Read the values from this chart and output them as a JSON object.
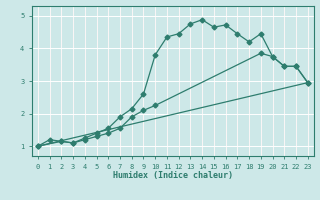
{
  "xlabel": "Humidex (Indice chaleur)",
  "bg_color": "#cde8e8",
  "line_color": "#2e7d6e",
  "grid_color": "#ffffff",
  "xlim": [
    -0.5,
    23.5
  ],
  "ylim": [
    0.7,
    5.3
  ],
  "xticks": [
    0,
    1,
    2,
    3,
    4,
    5,
    6,
    7,
    8,
    9,
    10,
    11,
    12,
    13,
    14,
    15,
    16,
    17,
    18,
    19,
    20,
    21,
    22,
    23
  ],
  "yticks": [
    1,
    2,
    3,
    4,
    5
  ],
  "line1_x": [
    0,
    1,
    2,
    3,
    4,
    5,
    6,
    7,
    8,
    9,
    10,
    11,
    12,
    13,
    14,
    15,
    16,
    17,
    18,
    19,
    20,
    21,
    22,
    23
  ],
  "line1_y": [
    1.0,
    1.2,
    1.15,
    1.1,
    1.25,
    1.4,
    1.55,
    1.9,
    2.15,
    2.6,
    3.8,
    4.35,
    4.45,
    4.75,
    4.88,
    4.65,
    4.72,
    4.45,
    4.2,
    4.45,
    3.75,
    3.45,
    3.45,
    2.95
  ],
  "line2_x": [
    0,
    2,
    3,
    4,
    5,
    6,
    7,
    8,
    9,
    10,
    19,
    20,
    21,
    22,
    23
  ],
  "line2_y": [
    1.0,
    1.15,
    1.1,
    1.2,
    1.3,
    1.4,
    1.55,
    1.9,
    2.1,
    2.25,
    3.85,
    3.75,
    3.45,
    3.45,
    2.95
  ],
  "line3_x": [
    0,
    23
  ],
  "line3_y": [
    1.0,
    2.95
  ]
}
